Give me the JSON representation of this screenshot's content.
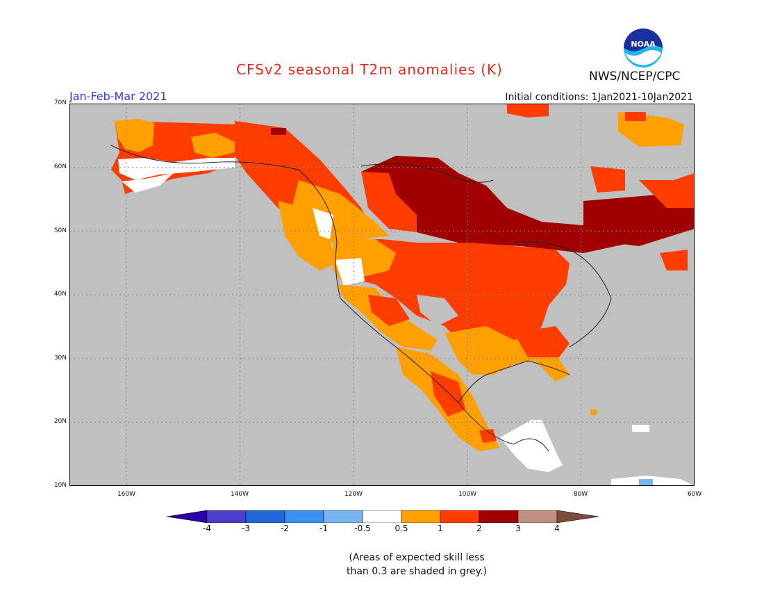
{
  "header": {
    "title": "CFSv2 seasonal T2m anomalies (K)",
    "season": "Jan-Feb-Mar 2021",
    "initial_conditions": "Initial conditions: 1Jan2021-10Jan2021",
    "agency": "NWS/NCEP/CPC",
    "logo_text": "NOAA"
  },
  "map": {
    "lat_labels": [
      "70N",
      "60N",
      "50N",
      "40N",
      "30N",
      "20N",
      "10N"
    ],
    "lon_labels": [
      "160W",
      "140W",
      "120W",
      "100W",
      "80W",
      "60W"
    ],
    "colors": {
      "grey_low_skill": "#c0c0c0",
      "white_neutral": "#ffffff",
      "orange_0_5_1": "#ffa000",
      "redorange_1_2": "#ff3c00",
      "darkred_2_3": "#a00000",
      "blue_neg": "#78b4f0"
    }
  },
  "colorbar": {
    "labels": [
      "-4",
      "-3",
      "-2",
      "-1",
      "-0.5",
      "0.5",
      "1",
      "2",
      "3",
      "4"
    ],
    "colors": [
      "#2a00a5",
      "#4a3fcf",
      "#1f6ad8",
      "#3d8ff0",
      "#78b4f0",
      "#ffffff",
      "#ffa000",
      "#ff3c00",
      "#a00000",
      "#c09080",
      "#7a4a3a"
    ]
  },
  "note": {
    "line1": "(Areas of expected skill less",
    "line2": "than 0.3 are shaded in grey.)"
  }
}
